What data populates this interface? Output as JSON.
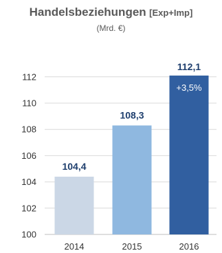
{
  "title": {
    "main": "Handelsbeziehungen",
    "suffix": "[Exp+Imp]",
    "subtitle": "(Mrd. €)"
  },
  "chart_data": {
    "type": "bar",
    "title": "Handelsbeziehungen [Exp+Imp]",
    "subtitle": "(Mrd. €)",
    "categories": [
      "2014",
      "2015",
      "2016"
    ],
    "values": [
      104.4,
      108.3,
      112.1
    ],
    "value_labels": [
      "104,4",
      "108,3",
      "112,1"
    ],
    "annotations": [
      {
        "category": "2016",
        "text": "+3,5%",
        "position": "inside-top"
      }
    ],
    "colors": [
      "#cbd7e6",
      "#8fb8e0",
      "#315fa0"
    ],
    "ylim": [
      100,
      113
    ],
    "yticks": [
      100,
      102,
      104,
      106,
      108,
      110,
      112
    ],
    "grid": true,
    "xlabel": "",
    "ylabel": ""
  }
}
